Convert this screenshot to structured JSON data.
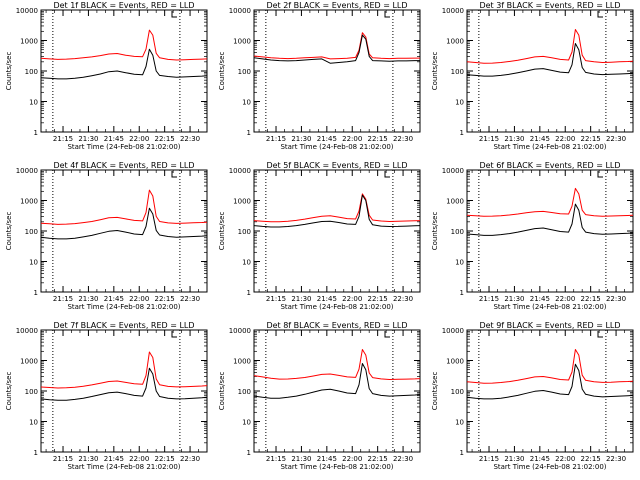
{
  "colors": {
    "events": "#000000",
    "lld": "#ff0000",
    "axes": "#000000",
    "background": "#ffffff"
  },
  "chart_data": [
    {
      "type": "line",
      "title": "Det 1f BLACK = Events, RED = LLD",
      "xlabel": "Start Time (24-Feb-08 21:02:00)",
      "ylabel": "Counts/sec",
      "scale_y": "log",
      "ylim": [
        1,
        10000
      ],
      "y_ticks": [
        "1",
        "10",
        "100",
        "1000",
        "10000"
      ],
      "x_ticks": [
        "21:15",
        "21:30",
        "21:45",
        "22:00",
        "22:15",
        "22:30"
      ],
      "x_tick_minutes": [
        13,
        28,
        43,
        58,
        73,
        88
      ],
      "xlim_minutes_after_start": [
        0,
        98
      ],
      "vlines_minutes": [
        7,
        82
      ],
      "x_minutes": [
        0,
        5,
        10,
        15,
        20,
        25,
        30,
        35,
        40,
        45,
        50,
        55,
        60,
        62,
        64,
        66,
        68,
        70,
        75,
        80,
        85,
        90,
        95,
        98
      ],
      "series": [
        {
          "color": "black",
          "values": [
            60,
            58,
            55,
            55,
            58,
            62,
            70,
            80,
            95,
            100,
            88,
            78,
            75,
            140,
            520,
            330,
            100,
            72,
            66,
            62,
            64,
            66,
            68,
            70
          ]
        },
        {
          "color": "red",
          "values": [
            260,
            250,
            240,
            245,
            255,
            270,
            290,
            320,
            360,
            375,
            330,
            300,
            295,
            520,
            2200,
            1500,
            380,
            270,
            240,
            230,
            235,
            240,
            245,
            250
          ]
        }
      ]
    },
    {
      "type": "line",
      "title": "Det 2f BLACK = Events, RED = LLD",
      "xlabel": "Start Time (24-Feb-08 21:02:00)",
      "ylabel": "Counts/sec",
      "scale_y": "log",
      "ylim": [
        1,
        10000
      ],
      "y_ticks": [
        "1",
        "10",
        "100",
        "1000",
        "10000"
      ],
      "x_ticks": [
        "21:15",
        "21:30",
        "21:45",
        "22:00",
        "22:15",
        "22:30"
      ],
      "x_tick_minutes": [
        13,
        28,
        43,
        58,
        73,
        88
      ],
      "xlim_minutes_after_start": [
        0,
        98
      ],
      "vlines_minutes": [
        7,
        82
      ],
      "x_minutes": [
        0,
        5,
        10,
        15,
        20,
        25,
        30,
        35,
        40,
        45,
        50,
        55,
        60,
        62,
        64,
        66,
        68,
        70,
        75,
        80,
        85,
        90,
        95,
        98
      ],
      "series": [
        {
          "color": "black",
          "values": [
            270,
            250,
            230,
            220,
            215,
            220,
            230,
            240,
            250,
            180,
            190,
            200,
            220,
            400,
            1500,
            1100,
            300,
            220,
            215,
            210,
            215,
            215,
            220,
            220
          ]
        },
        {
          "color": "red",
          "values": [
            310,
            290,
            270,
            260,
            255,
            260,
            270,
            280,
            290,
            250,
            255,
            260,
            280,
            480,
            1800,
            1300,
            360,
            270,
            260,
            255,
            260,
            260,
            265,
            265
          ]
        }
      ]
    },
    {
      "type": "line",
      "title": "Det 3f BLACK = Events, RED = LLD",
      "xlabel": "Start Time (24-Feb-08 21:02:00)",
      "ylabel": "Counts/sec",
      "scale_y": "log",
      "ylim": [
        1,
        10000
      ],
      "y_ticks": [
        "1",
        "10",
        "100",
        "1000",
        "10000"
      ],
      "x_ticks": [
        "21:15",
        "21:30",
        "21:45",
        "22:00",
        "22:15",
        "22:30"
      ],
      "x_tick_minutes": [
        13,
        28,
        43,
        58,
        73,
        88
      ],
      "xlim_minutes_after_start": [
        0,
        98
      ],
      "vlines_minutes": [
        7,
        82
      ],
      "x_minutes": [
        0,
        5,
        10,
        15,
        20,
        25,
        30,
        35,
        40,
        45,
        50,
        55,
        60,
        62,
        64,
        66,
        68,
        70,
        75,
        80,
        85,
        90,
        95,
        98
      ],
      "series": [
        {
          "color": "black",
          "values": [
            75,
            72,
            68,
            68,
            72,
            78,
            88,
            100,
            115,
            120,
            105,
            92,
            88,
            160,
            800,
            500,
            130,
            90,
            80,
            76,
            78,
            80,
            82,
            84
          ]
        },
        {
          "color": "red",
          "values": [
            200,
            190,
            180,
            182,
            190,
            205,
            225,
            255,
            290,
            300,
            270,
            240,
            230,
            420,
            2300,
            1500,
            330,
            220,
            200,
            190,
            195,
            200,
            205,
            210
          ]
        }
      ]
    },
    {
      "type": "line",
      "title": "Det 4f BLACK = Events, RED = LLD",
      "xlabel": "Start Time (24-Feb-08 21:02:00)",
      "ylabel": "Counts/sec",
      "scale_y": "log",
      "ylim": [
        1,
        10000
      ],
      "y_ticks": [
        "1",
        "10",
        "100",
        "1000",
        "10000"
      ],
      "x_ticks": [
        "21:15",
        "21:30",
        "21:45",
        "22:00",
        "22:15",
        "22:30"
      ],
      "x_tick_minutes": [
        13,
        28,
        43,
        58,
        73,
        88
      ],
      "xlim_minutes_after_start": [
        0,
        98
      ],
      "vlines_minutes": [
        7,
        82
      ],
      "x_minutes": [
        0,
        5,
        10,
        15,
        20,
        25,
        30,
        35,
        40,
        45,
        50,
        55,
        60,
        62,
        64,
        66,
        68,
        70,
        75,
        80,
        85,
        90,
        95,
        98
      ],
      "series": [
        {
          "color": "black",
          "values": [
            62,
            58,
            55,
            55,
            58,
            64,
            72,
            84,
            98,
            104,
            92,
            80,
            76,
            140,
            560,
            360,
            105,
            74,
            66,
            62,
            64,
            66,
            68,
            70
          ]
        },
        {
          "color": "red",
          "values": [
            180,
            172,
            165,
            168,
            175,
            188,
            205,
            235,
            270,
            280,
            250,
            222,
            215,
            400,
            2200,
            1400,
            300,
            205,
            185,
            178,
            182,
            186,
            190,
            195
          ]
        }
      ]
    },
    {
      "type": "line",
      "title": "Det 5f BLACK = Events, RED = LLD",
      "xlabel": "Start Time (24-Feb-08 21:02:00)",
      "ylabel": "Counts/sec",
      "scale_y": "log",
      "ylim": [
        1,
        10000
      ],
      "y_ticks": [
        "1",
        "10",
        "100",
        "1000",
        "10000"
      ],
      "x_ticks": [
        "21:15",
        "21:30",
        "21:45",
        "22:00",
        "22:15",
        "22:30"
      ],
      "x_tick_minutes": [
        13,
        28,
        43,
        58,
        73,
        88
      ],
      "xlim_minutes_after_start": [
        0,
        98
      ],
      "vlines_minutes": [
        7,
        82
      ],
      "x_minutes": [
        0,
        5,
        10,
        15,
        20,
        25,
        30,
        35,
        40,
        45,
        50,
        55,
        60,
        62,
        64,
        66,
        68,
        70,
        75,
        80,
        85,
        90,
        95,
        98
      ],
      "series": [
        {
          "color": "black",
          "values": [
            150,
            142,
            135,
            135,
            140,
            150,
            165,
            185,
            205,
            210,
            190,
            170,
            165,
            300,
            1500,
            1000,
            240,
            160,
            145,
            140,
            142,
            145,
            148,
            150
          ]
        },
        {
          "color": "red",
          "values": [
            220,
            210,
            200,
            200,
            208,
            222,
            245,
            275,
            305,
            315,
            285,
            255,
            248,
            450,
            1650,
            1100,
            330,
            230,
            212,
            205,
            208,
            212,
            216,
            220
          ]
        }
      ]
    },
    {
      "type": "line",
      "title": "Det 6f BLACK = Events, RED = LLD",
      "xlabel": "Start Time (24-Feb-08 21:02:00)",
      "ylabel": "Counts/sec",
      "scale_y": "log",
      "ylim": [
        1,
        10000
      ],
      "y_ticks": [
        "1",
        "10",
        "100",
        "1000",
        "10000"
      ],
      "x_ticks": [
        "21:15",
        "21:30",
        "21:45",
        "22:00",
        "22:15",
        "22:30"
      ],
      "x_tick_minutes": [
        13,
        28,
        43,
        58,
        73,
        88
      ],
      "xlim_minutes_after_start": [
        0,
        98
      ],
      "vlines_minutes": [
        7,
        82
      ],
      "x_minutes": [
        0,
        5,
        10,
        15,
        20,
        25,
        30,
        35,
        40,
        45,
        50,
        55,
        60,
        62,
        64,
        66,
        68,
        70,
        75,
        80,
        85,
        90,
        95,
        98
      ],
      "series": [
        {
          "color": "black",
          "values": [
            80,
            76,
            72,
            72,
            76,
            82,
            92,
            105,
            120,
            125,
            110,
            96,
            92,
            170,
            760,
            480,
            130,
            92,
            82,
            78,
            80,
            82,
            84,
            86
          ]
        },
        {
          "color": "red",
          "values": [
            330,
            318,
            305,
            308,
            318,
            335,
            360,
            395,
            430,
            440,
            405,
            370,
            360,
            650,
            2500,
            1650,
            480,
            345,
            318,
            305,
            310,
            316,
            322,
            328
          ]
        }
      ]
    },
    {
      "type": "line",
      "title": "Det 7f BLACK = Events, RED = LLD",
      "xlabel": "Start Time (24-Feb-08 21:02:00)",
      "ylabel": "Counts/sec",
      "scale_y": "log",
      "ylim": [
        1,
        10000
      ],
      "y_ticks": [
        "1",
        "10",
        "100",
        "1000",
        "10000"
      ],
      "x_ticks": [
        "21:15",
        "21:30",
        "21:45",
        "22:00",
        "22:15",
        "22:30"
      ],
      "x_tick_minutes": [
        13,
        28,
        43,
        58,
        73,
        88
      ],
      "xlim_minutes_after_start": [
        0,
        98
      ],
      "vlines_minutes": [
        7,
        82
      ],
      "x_minutes": [
        0,
        5,
        10,
        15,
        20,
        25,
        30,
        35,
        40,
        45,
        50,
        55,
        60,
        62,
        64,
        66,
        68,
        70,
        75,
        80,
        85,
        90,
        95,
        98
      ],
      "series": [
        {
          "color": "black",
          "values": [
            55,
            52,
            50,
            50,
            53,
            58,
            66,
            76,
            88,
            92,
            82,
            72,
            68,
            125,
            560,
            360,
            100,
            66,
            58,
            55,
            56,
            58,
            60,
            62
          ]
        },
        {
          "color": "red",
          "values": [
            135,
            130,
            125,
            127,
            133,
            143,
            158,
            180,
            205,
            212,
            192,
            172,
            166,
            320,
            1900,
            1250,
            250,
            160,
            142,
            136,
            138,
            142,
            146,
            150
          ]
        }
      ]
    },
    {
      "type": "line",
      "title": "Det 8f BLACK = Events, RED = LLD",
      "xlabel": "Start Time (24-Feb-08 21:02:00)",
      "ylabel": "Counts/sec",
      "scale_y": "log",
      "ylim": [
        1,
        10000
      ],
      "y_ticks": [
        "1",
        "10",
        "100",
        "1000",
        "10000"
      ],
      "x_ticks": [
        "21:15",
        "21:30",
        "21:45",
        "22:00",
        "22:15",
        "22:30"
      ],
      "x_tick_minutes": [
        13,
        28,
        43,
        58,
        73,
        88
      ],
      "xlim_minutes_after_start": [
        0,
        98
      ],
      "vlines_minutes": [
        7,
        82
      ],
      "x_minutes": [
        0,
        5,
        10,
        15,
        20,
        25,
        30,
        35,
        40,
        45,
        50,
        55,
        60,
        62,
        64,
        66,
        68,
        70,
        75,
        80,
        85,
        90,
        95,
        98
      ],
      "series": [
        {
          "color": "black",
          "values": [
            68,
            62,
            58,
            58,
            62,
            68,
            78,
            92,
            108,
            114,
            100,
            86,
            82,
            160,
            800,
            500,
            120,
            82,
            72,
            68,
            70,
            72,
            74,
            76
          ]
        },
        {
          "color": "red",
          "values": [
            320,
            290,
            260,
            245,
            248,
            258,
            278,
            310,
            350,
            360,
            325,
            290,
            280,
            520,
            2300,
            1500,
            390,
            275,
            250,
            238,
            242,
            246,
            250,
            255
          ]
        }
      ]
    },
    {
      "type": "line",
      "title": "Det 9f BLACK = Events, RED = LLD",
      "xlabel": "Start Time (24-Feb-08 21:02:00)",
      "ylabel": "Counts/sec",
      "scale_y": "log",
      "ylim": [
        1,
        10000
      ],
      "y_ticks": [
        "1",
        "10",
        "100",
        "1000",
        "10000"
      ],
      "x_ticks": [
        "21:15",
        "21:30",
        "21:45",
        "22:00",
        "22:15",
        "22:30"
      ],
      "x_tick_minutes": [
        13,
        28,
        43,
        58,
        73,
        88
      ],
      "xlim_minutes_after_start": [
        0,
        98
      ],
      "vlines_minutes": [
        7,
        82
      ],
      "x_minutes": [
        0,
        5,
        10,
        15,
        20,
        25,
        30,
        35,
        40,
        45,
        50,
        55,
        60,
        62,
        64,
        66,
        68,
        70,
        75,
        80,
        85,
        90,
        95,
        98
      ],
      "series": [
        {
          "color": "black",
          "values": [
            62,
            58,
            55,
            55,
            58,
            64,
            72,
            84,
            98,
            104,
            92,
            80,
            76,
            140,
            750,
            470,
            115,
            78,
            68,
            64,
            66,
            68,
            70,
            72
          ]
        },
        {
          "color": "red",
          "values": [
            200,
            190,
            180,
            182,
            190,
            204,
            224,
            255,
            290,
            298,
            268,
            238,
            230,
            420,
            2300,
            1500,
            330,
            225,
            200,
            192,
            195,
            200,
            205,
            210
          ]
        }
      ]
    }
  ]
}
